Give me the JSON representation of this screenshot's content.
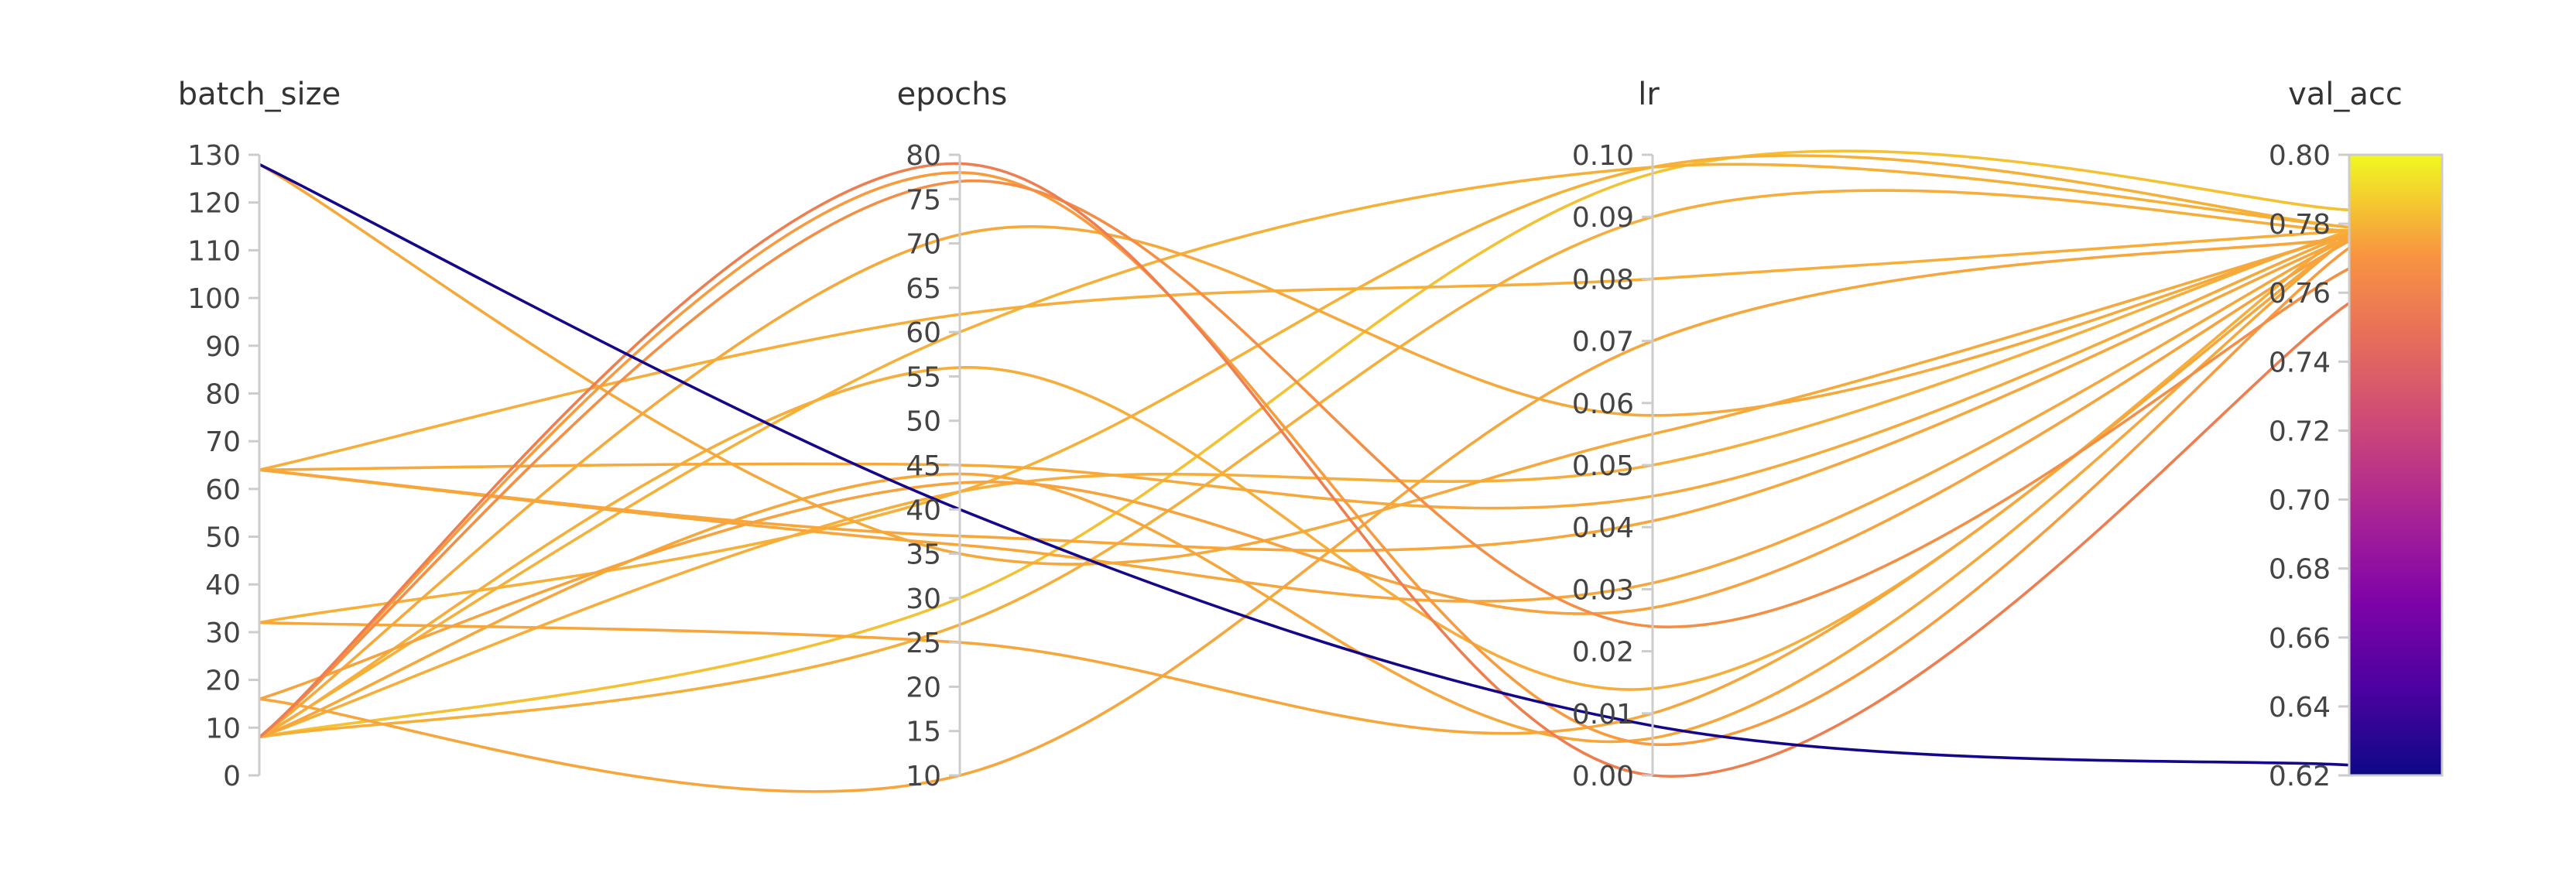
{
  "chart_data": {
    "type": "parallel_coordinates",
    "title": "",
    "axes": [
      {
        "name": "batch_size",
        "range": [
          0,
          130
        ],
        "ticks": [
          0,
          10,
          20,
          30,
          40,
          50,
          60,
          70,
          80,
          90,
          100,
          110,
          120,
          130
        ]
      },
      {
        "name": "epochs",
        "range": [
          10,
          80
        ],
        "ticks": [
          10,
          15,
          20,
          25,
          30,
          35,
          40,
          45,
          50,
          55,
          60,
          65,
          70,
          75,
          80
        ]
      },
      {
        "name": "lr",
        "range": [
          0,
          0.1
        ],
        "ticks": [
          0.0,
          0.01,
          0.02,
          0.03,
          0.04,
          0.05,
          0.06,
          0.07,
          0.08,
          0.09,
          0.1
        ],
        "tick_labels": [
          "0.00",
          "0.01",
          "0.02",
          "0.03",
          "0.04",
          "0.05",
          "0.06",
          "0.07",
          "0.08",
          "0.09",
          "0.10"
        ]
      },
      {
        "name": "val_acc",
        "range": [
          0.62,
          0.8
        ],
        "ticks": [
          0.62,
          0.64,
          0.66,
          0.68,
          0.7,
          0.72,
          0.74,
          0.76,
          0.78,
          0.8
        ],
        "tick_labels": [
          "0.62",
          "0.64",
          "0.66",
          "0.68",
          "0.70",
          "0.72",
          "0.74",
          "0.76",
          "0.78",
          "0.80"
        ]
      }
    ],
    "colorbar": {
      "colormap": "plasma",
      "range": [
        0.62,
        0.8
      ]
    },
    "runs": [
      {
        "batch_size": 128,
        "epochs": 40,
        "lr": 0.008,
        "val_acc": 0.623
      },
      {
        "batch_size": 128,
        "epochs": 35,
        "lr": 0.055,
        "val_acc": 0.777
      },
      {
        "batch_size": 64,
        "epochs": 62,
        "lr": 0.08,
        "val_acc": 0.778
      },
      {
        "batch_size": 64,
        "epochs": 45,
        "lr": 0.045,
        "val_acc": 0.777
      },
      {
        "batch_size": 64,
        "epochs": 37,
        "lr": 0.041,
        "val_acc": 0.776
      },
      {
        "batch_size": 64,
        "epochs": 36,
        "lr": 0.031,
        "val_acc": 0.776
      },
      {
        "batch_size": 32,
        "epochs": 42,
        "lr": 0.098,
        "val_acc": 0.779
      },
      {
        "batch_size": 32,
        "epochs": 25,
        "lr": 0.01,
        "val_acc": 0.776
      },
      {
        "batch_size": 16,
        "epochs": 43,
        "lr": 0.027,
        "val_acc": 0.775
      },
      {
        "batch_size": 16,
        "epochs": 10,
        "lr": 0.07,
        "val_acc": 0.776
      },
      {
        "batch_size": 8,
        "epochs": 78,
        "lr": 0.005,
        "val_acc": 0.773
      },
      {
        "batch_size": 8,
        "epochs": 79,
        "lr": 0.0,
        "val_acc": 0.757
      },
      {
        "batch_size": 8,
        "epochs": 71,
        "lr": 0.058,
        "val_acc": 0.777
      },
      {
        "batch_size": 8,
        "epochs": 60,
        "lr": 0.098,
        "val_acc": 0.779
      },
      {
        "batch_size": 8,
        "epochs": 56,
        "lr": 0.014,
        "val_acc": 0.778
      },
      {
        "batch_size": 8,
        "epochs": 27,
        "lr": 0.09,
        "val_acc": 0.778
      },
      {
        "batch_size": 8,
        "epochs": 30,
        "lr": 0.097,
        "val_acc": 0.784
      },
      {
        "batch_size": 8,
        "epochs": 42,
        "lr": 0.05,
        "val_acc": 0.778
      },
      {
        "batch_size": 8,
        "epochs": 44,
        "lr": 0.006,
        "val_acc": 0.776
      },
      {
        "batch_size": 8,
        "epochs": 77,
        "lr": 0.024,
        "val_acc": 0.767
      }
    ]
  }
}
